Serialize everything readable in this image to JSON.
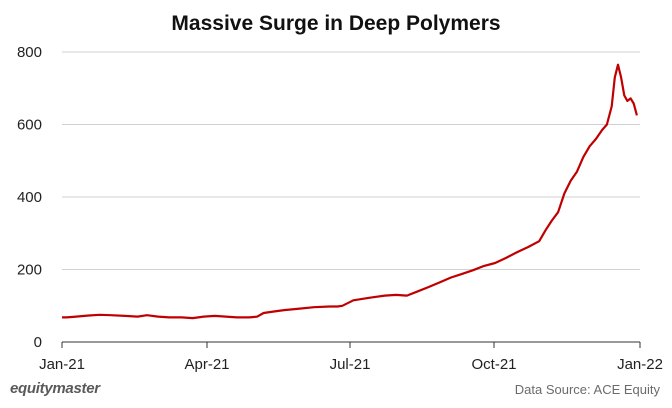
{
  "footer": {
    "brand": "equitymaster",
    "source": "Data Source: ACE Equity"
  },
  "colors": {
    "line": "#c00000",
    "grid": "#d0d0d0",
    "axis": "#333333"
  },
  "chart_data": {
    "type": "line",
    "title": "Massive Surge in Deep Polymers",
    "xlabel": "",
    "ylabel": "",
    "x_ticks": [
      "Jan-21",
      "Apr-21",
      "Jul-21",
      "Oct-21",
      "Jan-22"
    ],
    "x_range": [
      "2021-01-01",
      "2022-01-03"
    ],
    "y_ticks": [
      0,
      200,
      400,
      600,
      800
    ],
    "ylim": [
      0,
      800
    ],
    "grid": "horizontal",
    "legend": "none",
    "series": [
      {
        "x": [
          "2021-01-01",
          "2021-01-04",
          "2021-01-10",
          "2021-01-18",
          "2021-01-25",
          "2021-02-01",
          "2021-02-10",
          "2021-02-18",
          "2021-02-24",
          "2021-03-03",
          "2021-03-10",
          "2021-03-18",
          "2021-03-25",
          "2021-04-01",
          "2021-04-08",
          "2021-04-15",
          "2021-04-22",
          "2021-04-30",
          "2021-05-05",
          "2021-05-09",
          "2021-05-15",
          "2021-05-22",
          "2021-06-01",
          "2021-06-10",
          "2021-06-20",
          "2021-06-25",
          "2021-06-28",
          "2021-07-05",
          "2021-07-15",
          "2021-07-25",
          "2021-08-01",
          "2021-08-08",
          "2021-08-15",
          "2021-08-22",
          "2021-08-29",
          "2021-09-05",
          "2021-09-12",
          "2021-09-19",
          "2021-09-26",
          "2021-10-03",
          "2021-10-10",
          "2021-10-17",
          "2021-10-24",
          "2021-10-31",
          "2021-11-04",
          "2021-11-08",
          "2021-11-12",
          "2021-11-16",
          "2021-11-20",
          "2021-11-24",
          "2021-11-28",
          "2021-12-02",
          "2021-12-06",
          "2021-12-10",
          "2021-12-13",
          "2021-12-16",
          "2021-12-18",
          "2021-12-20",
          "2021-12-22",
          "2021-12-24",
          "2021-12-26",
          "2021-12-28",
          "2021-12-30",
          "2022-01-01"
        ],
        "y": [
          68,
          68,
          70,
          73,
          75,
          74,
          72,
          70,
          74,
          70,
          68,
          68,
          66,
          70,
          72,
          70,
          68,
          68,
          70,
          80,
          84,
          88,
          92,
          96,
          98,
          98,
          100,
          115,
          122,
          128,
          130,
          128,
          140,
          152,
          165,
          178,
          188,
          198,
          210,
          218,
          232,
          248,
          262,
          278,
          308,
          335,
          358,
          410,
          445,
          470,
          510,
          540,
          560,
          585,
          600,
          650,
          730,
          765,
          730,
          680,
          665,
          672,
          658,
          625
        ]
      }
    ]
  }
}
